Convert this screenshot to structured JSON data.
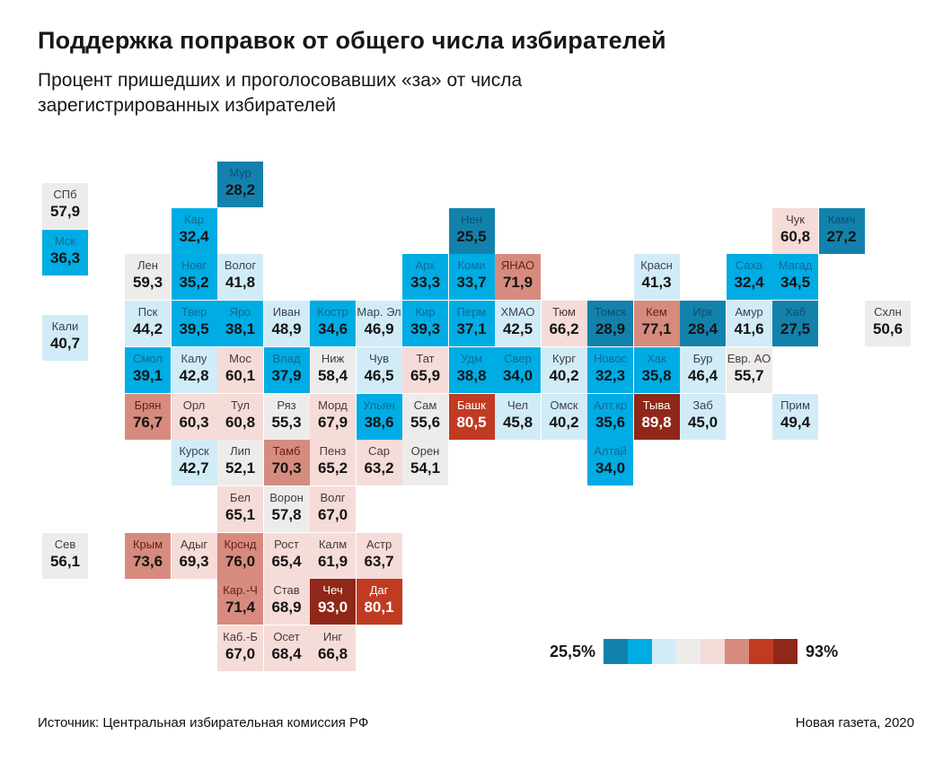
{
  "header": {
    "title": "Поддержка поправок от общего числа избирателей",
    "subtitle": "Процент пришедших и проголосовавших «за» от числа зарегистрированных избирателей"
  },
  "legend": {
    "min_label": "25,5%",
    "max_label": "93%"
  },
  "footer": {
    "source": "Источник: Центральная избирательная комиссия РФ",
    "credit": "Новая газета, 2020"
  },
  "chart_data": {
    "type": "heatmap",
    "variant": "tile-cartogram",
    "title": "Поддержка поправок от общего числа избирателей",
    "unit": "% от числа зарегистрированных избирателей",
    "value_range": [
      25.5,
      93.0
    ],
    "legend_position": "bottom-right",
    "scale": {
      "bins": [
        {
          "bg": "#1282ad",
          "label_color": "#0d506e",
          "value_color": "#141414"
        },
        {
          "bg": "#00ace4",
          "label_color": "#136a91",
          "value_color": "#141414"
        },
        {
          "bg": "#d2ecf7",
          "label_color": "#3c4347",
          "value_color": "#141414"
        },
        {
          "bg": "#eeeceb",
          "label_color": "#403d3b",
          "value_color": "#141414"
        },
        {
          "bg": "#f5dcd9",
          "label_color": "#46393 7",
          "value_color": "#141414"
        },
        {
          "bg": "#d78b7e",
          "label_color": "#661f18",
          "value_color": "#141414"
        },
        {
          "bg": "#c13a22",
          "label_color": "#ffffff",
          "value_color": "#ffffff"
        },
        {
          "bg": "#8f2818",
          "label_color": "#ffffff",
          "value_color": "#ffffff"
        }
      ]
    },
    "tiles": [
      {
        "region": "СПб",
        "value": "57,9",
        "num": 57.9,
        "col": 0,
        "row": 0.46,
        "bin": 3
      },
      {
        "region": "Мск",
        "value": "36,3",
        "num": 36.3,
        "col": 0,
        "row": 1.47,
        "bin": 1
      },
      {
        "region": "Кали",
        "value": "40,7",
        "num": 40.7,
        "col": 0,
        "row": 3.3,
        "bin": 2
      },
      {
        "region": "Сев",
        "value": "56,1",
        "num": 56.1,
        "col": 0,
        "row": 8,
        "bin": 3
      },
      {
        "region": "Мур",
        "value": "28,2",
        "num": 28.2,
        "col": 3,
        "row": 0,
        "bin": 0
      },
      {
        "region": "Кар",
        "value": "32,4",
        "num": 32.4,
        "col": 2,
        "row": 1,
        "bin": 1
      },
      {
        "region": "Нен",
        "value": "25,5",
        "num": 25.5,
        "col": 8,
        "row": 1,
        "bin": 0
      },
      {
        "region": "Чук",
        "value": "60,8",
        "num": 60.8,
        "col": 15,
        "row": 1,
        "bin": 4
      },
      {
        "region": "Камч",
        "value": "27,2",
        "num": 27.2,
        "col": 16,
        "row": 1,
        "bin": 0
      },
      {
        "region": "Лен",
        "value": "59,3",
        "num": 59.3,
        "col": 1,
        "row": 2,
        "bin": 3
      },
      {
        "region": "Новг",
        "value": "35,2",
        "num": 35.2,
        "col": 2,
        "row": 2,
        "bin": 1
      },
      {
        "region": "Волог",
        "value": "41,8",
        "num": 41.8,
        "col": 3,
        "row": 2,
        "bin": 2
      },
      {
        "region": "Арх",
        "value": "33,3",
        "num": 33.3,
        "col": 7,
        "row": 2,
        "bin": 1
      },
      {
        "region": "Коми",
        "value": "33,7",
        "num": 33.7,
        "col": 8,
        "row": 2,
        "bin": 1
      },
      {
        "region": "ЯНАО",
        "value": "71,9",
        "num": 71.9,
        "col": 9,
        "row": 2,
        "bin": 5
      },
      {
        "region": "Красн",
        "value": "41,3",
        "num": 41.3,
        "col": 12,
        "row": 2,
        "bin": 2
      },
      {
        "region": "Саха",
        "value": "32,4",
        "num": 32.4,
        "col": 14,
        "row": 2,
        "bin": 1
      },
      {
        "region": "Магад",
        "value": "34,5",
        "num": 34.5,
        "col": 15,
        "row": 2,
        "bin": 1
      },
      {
        "region": "Пск",
        "value": "44,2",
        "num": 44.2,
        "col": 1,
        "row": 3,
        "bin": 2
      },
      {
        "region": "Твер",
        "value": "39,5",
        "num": 39.5,
        "col": 2,
        "row": 3,
        "bin": 1
      },
      {
        "region": "Яро",
        "value": "38,1",
        "num": 38.1,
        "col": 3,
        "row": 3,
        "bin": 1
      },
      {
        "region": "Иван",
        "value": "48,9",
        "num": 48.9,
        "col": 4,
        "row": 3,
        "bin": 2
      },
      {
        "region": "Костр",
        "value": "34,6",
        "num": 34.6,
        "col": 5,
        "row": 3,
        "bin": 1
      },
      {
        "region": "Мар. Эл",
        "value": "46,9",
        "num": 46.9,
        "col": 6,
        "row": 3,
        "bin": 2
      },
      {
        "region": "Кир",
        "value": "39,3",
        "num": 39.3,
        "col": 7,
        "row": 3,
        "bin": 1
      },
      {
        "region": "Перм",
        "value": "37,1",
        "num": 37.1,
        "col": 8,
        "row": 3,
        "bin": 1
      },
      {
        "region": "ХМАО",
        "value": "42,5",
        "num": 42.5,
        "col": 9,
        "row": 3,
        "bin": 2
      },
      {
        "region": "Тюм",
        "value": "66,2",
        "num": 66.2,
        "col": 10,
        "row": 3,
        "bin": 4
      },
      {
        "region": "Томск",
        "value": "28,9",
        "num": 28.9,
        "col": 11,
        "row": 3,
        "bin": 0
      },
      {
        "region": "Кем",
        "value": "77,1",
        "num": 77.1,
        "col": 12,
        "row": 3,
        "bin": 5
      },
      {
        "region": "Ирк",
        "value": "28,4",
        "num": 28.4,
        "col": 13,
        "row": 3,
        "bin": 0
      },
      {
        "region": "Амур",
        "value": "41,6",
        "num": 41.6,
        "col": 14,
        "row": 3,
        "bin": 2
      },
      {
        "region": "Хаб",
        "value": "27,5",
        "num": 27.5,
        "col": 15,
        "row": 3,
        "bin": 0
      },
      {
        "region": "Схлн",
        "value": "50,6",
        "num": 50.6,
        "col": 17,
        "row": 3,
        "bin": 3
      },
      {
        "region": "Смол",
        "value": "39,1",
        "num": 39.1,
        "col": 1,
        "row": 4,
        "bin": 1
      },
      {
        "region": "Калу",
        "value": "42,8",
        "num": 42.8,
        "col": 2,
        "row": 4,
        "bin": 2
      },
      {
        "region": "Мос",
        "value": "60,1",
        "num": 60.1,
        "col": 3,
        "row": 4,
        "bin": 4
      },
      {
        "region": "Влад",
        "value": "37,9",
        "num": 37.9,
        "col": 4,
        "row": 4,
        "bin": 1
      },
      {
        "region": "Ниж",
        "value": "58,4",
        "num": 58.4,
        "col": 5,
        "row": 4,
        "bin": 3
      },
      {
        "region": "Чув",
        "value": "46,5",
        "num": 46.5,
        "col": 6,
        "row": 4,
        "bin": 2
      },
      {
        "region": "Тат",
        "value": "65,9",
        "num": 65.9,
        "col": 7,
        "row": 4,
        "bin": 4
      },
      {
        "region": "Удм",
        "value": "38,8",
        "num": 38.8,
        "col": 8,
        "row": 4,
        "bin": 1
      },
      {
        "region": "Свер",
        "value": "34,0",
        "num": 34.0,
        "col": 9,
        "row": 4,
        "bin": 1
      },
      {
        "region": "Кург",
        "value": "40,2",
        "num": 40.2,
        "col": 10,
        "row": 4,
        "bin": 2
      },
      {
        "region": "Новос",
        "value": "32,3",
        "num": 32.3,
        "col": 11,
        "row": 4,
        "bin": 1
      },
      {
        "region": "Хак",
        "value": "35,8",
        "num": 35.8,
        "col": 12,
        "row": 4,
        "bin": 1
      },
      {
        "region": "Бур",
        "value": "46,4",
        "num": 46.4,
        "col": 13,
        "row": 4,
        "bin": 2
      },
      {
        "region": "Евр. АО",
        "value": "55,7",
        "num": 55.7,
        "col": 14,
        "row": 4,
        "bin": 3
      },
      {
        "region": "Брян",
        "value": "76,7",
        "num": 76.7,
        "col": 1,
        "row": 5,
        "bin": 5
      },
      {
        "region": "Орл",
        "value": "60,3",
        "num": 60.3,
        "col": 2,
        "row": 5,
        "bin": 4
      },
      {
        "region": "Тул",
        "value": "60,8",
        "num": 60.8,
        "col": 3,
        "row": 5,
        "bin": 4
      },
      {
        "region": "Ряз",
        "value": "55,3",
        "num": 55.3,
        "col": 4,
        "row": 5,
        "bin": 3
      },
      {
        "region": "Морд",
        "value": "67,9",
        "num": 67.9,
        "col": 5,
        "row": 5,
        "bin": 4
      },
      {
        "region": "Ульян",
        "value": "38,6",
        "num": 38.6,
        "col": 6,
        "row": 5,
        "bin": 1
      },
      {
        "region": "Сам",
        "value": "55,6",
        "num": 55.6,
        "col": 7,
        "row": 5,
        "bin": 3
      },
      {
        "region": "Башк",
        "value": "80,5",
        "num": 80.5,
        "col": 8,
        "row": 5,
        "bin": 6
      },
      {
        "region": "Чел",
        "value": "45,8",
        "num": 45.8,
        "col": 9,
        "row": 5,
        "bin": 2
      },
      {
        "region": "Омск",
        "value": "40,2",
        "num": 40.2,
        "col": 10,
        "row": 5,
        "bin": 2
      },
      {
        "region": "Алт.кр",
        "value": "35,6",
        "num": 35.6,
        "col": 11,
        "row": 5,
        "bin": 1
      },
      {
        "region": "Тыва",
        "value": "89,8",
        "num": 89.8,
        "col": 12,
        "row": 5,
        "bin": 7
      },
      {
        "region": "Заб",
        "value": "45,0",
        "num": 45.0,
        "col": 13,
        "row": 5,
        "bin": 2
      },
      {
        "region": "Прим",
        "value": "49,4",
        "num": 49.4,
        "col": 15,
        "row": 5,
        "bin": 2
      },
      {
        "region": "Курск",
        "value": "42,7",
        "num": 42.7,
        "col": 2,
        "row": 6,
        "bin": 2
      },
      {
        "region": "Лип",
        "value": "52,1",
        "num": 52.1,
        "col": 3,
        "row": 6,
        "bin": 3
      },
      {
        "region": "Тамб",
        "value": "70,3",
        "num": 70.3,
        "col": 4,
        "row": 6,
        "bin": 5
      },
      {
        "region": "Пенз",
        "value": "65,2",
        "num": 65.2,
        "col": 5,
        "row": 6,
        "bin": 4
      },
      {
        "region": "Сар",
        "value": "63,2",
        "num": 63.2,
        "col": 6,
        "row": 6,
        "bin": 4
      },
      {
        "region": "Орен",
        "value": "54,1",
        "num": 54.1,
        "col": 7,
        "row": 6,
        "bin": 3
      },
      {
        "region": "Алтай",
        "value": "34,0",
        "num": 34.0,
        "col": 11,
        "row": 6,
        "bin": 1
      },
      {
        "region": "Бел",
        "value": "65,1",
        "num": 65.1,
        "col": 3,
        "row": 7,
        "bin": 4
      },
      {
        "region": "Ворон",
        "value": "57,8",
        "num": 57.8,
        "col": 4,
        "row": 7,
        "bin": 3
      },
      {
        "region": "Волг",
        "value": "67,0",
        "num": 67.0,
        "col": 5,
        "row": 7,
        "bin": 4
      },
      {
        "region": "Крым",
        "value": "73,6",
        "num": 73.6,
        "col": 1,
        "row": 8,
        "bin": 5
      },
      {
        "region": "Адыг",
        "value": "69,3",
        "num": 69.3,
        "col": 2,
        "row": 8,
        "bin": 4
      },
      {
        "region": "Крснд",
        "value": "76,0",
        "num": 76.0,
        "col": 3,
        "row": 8,
        "bin": 5
      },
      {
        "region": "Рост",
        "value": "65,4",
        "num": 65.4,
        "col": 4,
        "row": 8,
        "bin": 4
      },
      {
        "region": "Калм",
        "value": "61,9",
        "num": 61.9,
        "col": 5,
        "row": 8,
        "bin": 4
      },
      {
        "region": "Астр",
        "value": "63,7",
        "num": 63.7,
        "col": 6,
        "row": 8,
        "bin": 4
      },
      {
        "region": "Кар.-Ч",
        "value": "71,4",
        "num": 71.4,
        "col": 3,
        "row": 9,
        "bin": 5
      },
      {
        "region": "Став",
        "value": "68,9",
        "num": 68.9,
        "col": 4,
        "row": 9,
        "bin": 4
      },
      {
        "region": "Чеч",
        "value": "93,0",
        "num": 93.0,
        "col": 5,
        "row": 9,
        "bin": 7
      },
      {
        "region": "Даг",
        "value": "80,1",
        "num": 80.1,
        "col": 6,
        "row": 9,
        "bin": 6
      },
      {
        "region": "Каб.-Б",
        "value": "67,0",
        "num": 67.0,
        "col": 3,
        "row": 10,
        "bin": 4
      },
      {
        "region": "Осет",
        "value": "68,4",
        "num": 68.4,
        "col": 4,
        "row": 10,
        "bin": 4
      },
      {
        "region": "Инг",
        "value": "66,8",
        "num": 66.8,
        "col": 5,
        "row": 10,
        "bin": 4
      }
    ]
  }
}
